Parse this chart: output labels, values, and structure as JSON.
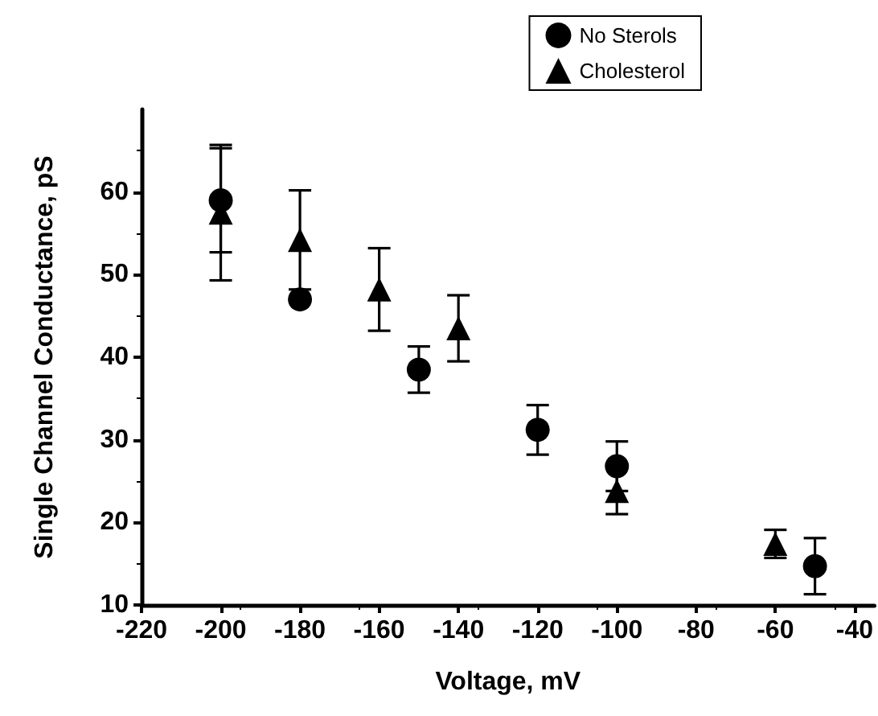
{
  "chart_data": {
    "type": "scatter",
    "xlabel": "Voltage, mV",
    "ylabel": "Single Channel Conductance, pS",
    "xlim": [
      -220,
      -35
    ],
    "xticks": [
      -220,
      -200,
      -180,
      -160,
      -140,
      -120,
      -100,
      -80,
      -60,
      -40
    ],
    "ylim": [
      10,
      70
    ],
    "yticks": [
      10,
      20,
      30,
      40,
      50,
      60
    ],
    "grid": false,
    "legend": "top right",
    "series": [
      {
        "name": "No Sterols",
        "color": "#000000",
        "marker": "circle",
        "x": [
          -200,
          -180,
          -150,
          -120,
          -100,
          -50
        ],
        "values": [
          59,
          47,
          38.5,
          31.2,
          26.8,
          14.7
        ],
        "errors": [
          6.3,
          null,
          2.8,
          3,
          3,
          3.4
        ]
      },
      {
        "name": "Cholesterol",
        "color": "#000000",
        "marker": "triangle",
        "x": [
          -200,
          -180,
          -160,
          -140,
          -100,
          -60
        ],
        "values": [
          57.5,
          54.2,
          48.2,
          43.5,
          23.8,
          17.4
        ],
        "errors": [
          8.2,
          6,
          5,
          4,
          2.8,
          1.7
        ]
      }
    ]
  }
}
